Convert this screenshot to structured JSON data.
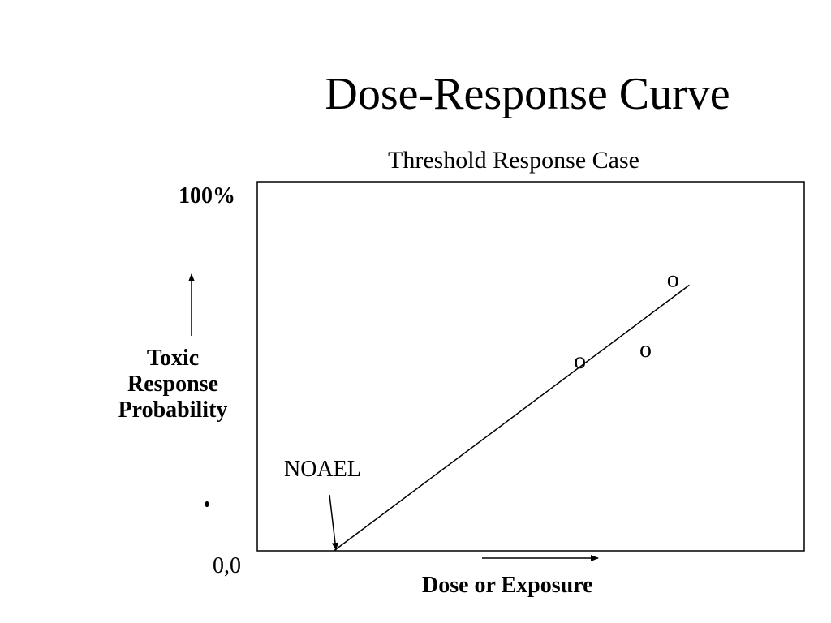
{
  "slide": {
    "title": "Dose-Response Curve"
  },
  "chart_data": {
    "type": "line",
    "title": "Threshold Response Case",
    "xlabel": "Dose or Exposure",
    "ylabel": "Toxic Response Probability",
    "ylabel_lines": [
      "Toxic",
      "Response",
      "Probability"
    ],
    "y_top_label": "100%",
    "origin_label": "0,0",
    "xlim": [
      0,
      100
    ],
    "ylim": [
      0,
      100
    ],
    "grid": false,
    "legend": "none",
    "series": [
      {
        "values": [
          {
            "x": 14,
            "y": 0
          },
          {
            "x": 79,
            "y": 72
          }
        ]
      }
    ],
    "points": [
      {
        "x": 59,
        "y": 51,
        "marker": "o"
      },
      {
        "x": 71,
        "y": 54,
        "marker": "o"
      },
      {
        "x": 76,
        "y": 73,
        "marker": "o"
      }
    ],
    "annotations": [
      {
        "text": "NOAEL",
        "x": 14,
        "y": 0
      }
    ],
    "line_color": "#000000"
  }
}
